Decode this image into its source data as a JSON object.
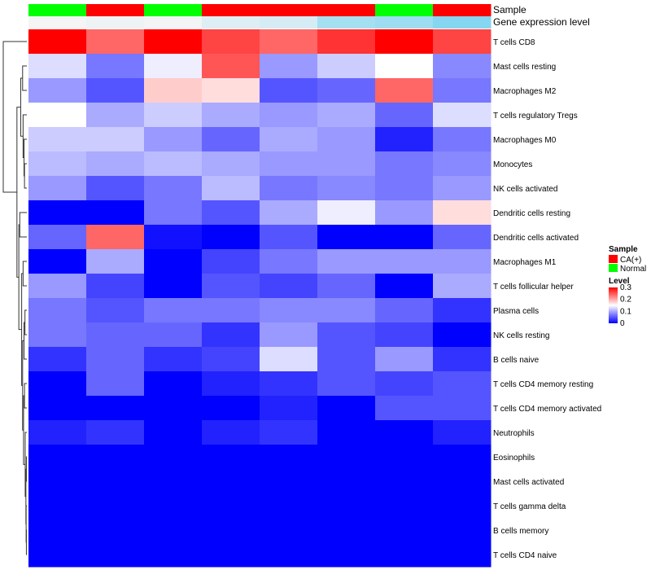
{
  "chart_data": {
    "type": "heatmap",
    "annotation_titles": {
      "sample": "Sample",
      "gene": "Gene expression level"
    },
    "legend": {
      "sample_title": "Sample",
      "sample_entries": [
        {
          "label": "CA(+)",
          "color": "#ff0000"
        },
        {
          "label": "Normal",
          "color": "#00ff00"
        }
      ],
      "level_title": "Level",
      "level_ticks": [
        "0.3",
        "0.2",
        "0.1",
        "0"
      ],
      "level_tick_values": [
        0.3,
        0.2,
        0.1,
        0
      ]
    },
    "color_scale": {
      "low": "#0000ff",
      "mid": "#ffffff",
      "high": "#ff0000",
      "min": 0,
      "mid_value": 0.15,
      "max": 0.3
    },
    "columns": [
      {
        "sample": "Normal",
        "gene": 0.0
      },
      {
        "sample": "CA(+)",
        "gene": 0.05
      },
      {
        "sample": "Normal",
        "gene": 0.02
      },
      {
        "sample": "CA(+)",
        "gene": 0.15
      },
      {
        "sample": "CA(+)",
        "gene": 0.2
      },
      {
        "sample": "CA(+)",
        "gene": 0.5
      },
      {
        "sample": "Normal",
        "gene": 0.55
      },
      {
        "sample": "CA(+)",
        "gene": 0.7
      }
    ],
    "gene_colors": {
      "low": "#f5f5f5",
      "high": "#55c8ee"
    },
    "rows": [
      "T cells CD8",
      "Mast cells resting",
      "Macrophages M2",
      "T cells regulatory  Tregs",
      "Macrophages M0",
      "Monocytes",
      "NK cells activated",
      "Dendritic cells resting",
      "Dendritic cells activated",
      "Macrophages M1",
      "T cells follicular helper",
      "Plasma cells",
      "NK cells resting",
      "B cells naive",
      "T cells CD4 memory resting",
      "T cells CD4 memory activated",
      "Neutrophils",
      "Eosinophils",
      "Mast cells activated",
      "T cells gamma delta",
      "B cells memory",
      "T cells CD4 naive"
    ],
    "values": [
      [
        0.3,
        0.24,
        0.3,
        0.26,
        0.24,
        0.27,
        0.3,
        0.26
      ],
      [
        0.13,
        0.07,
        0.14,
        0.25,
        0.09,
        0.12,
        0.15,
        0.08
      ],
      [
        0.09,
        0.05,
        0.18,
        0.17,
        0.05,
        0.06,
        0.24,
        0.07
      ],
      [
        0.15,
        0.1,
        0.12,
        0.1,
        0.09,
        0.1,
        0.06,
        0.13
      ],
      [
        0.12,
        0.12,
        0.09,
        0.06,
        0.1,
        0.09,
        0.02,
        0.07
      ],
      [
        0.11,
        0.1,
        0.11,
        0.1,
        0.09,
        0.09,
        0.07,
        0.08
      ],
      [
        0.09,
        0.05,
        0.07,
        0.11,
        0.07,
        0.08,
        0.07,
        0.09
      ],
      [
        0.0,
        0.0,
        0.07,
        0.05,
        0.1,
        0.14,
        0.09,
        0.17
      ],
      [
        0.06,
        0.24,
        0.01,
        0.0,
        0.05,
        0.0,
        0.0,
        0.06
      ],
      [
        0.0,
        0.1,
        0.0,
        0.04,
        0.07,
        0.09,
        0.09,
        0.09
      ],
      [
        0.09,
        0.04,
        0.0,
        0.05,
        0.04,
        0.06,
        0.0,
        0.1
      ],
      [
        0.07,
        0.05,
        0.07,
        0.07,
        0.08,
        0.08,
        0.06,
        0.03
      ],
      [
        0.07,
        0.06,
        0.06,
        0.03,
        0.09,
        0.05,
        0.04,
        0.0
      ],
      [
        0.03,
        0.06,
        0.03,
        0.04,
        0.13,
        0.05,
        0.09,
        0.03
      ],
      [
        0.0,
        0.06,
        0.0,
        0.02,
        0.03,
        0.05,
        0.04,
        0.05
      ],
      [
        0.0,
        0.0,
        0.0,
        0.0,
        0.02,
        0.0,
        0.05,
        0.05
      ],
      [
        0.02,
        0.03,
        0.0,
        0.02,
        0.03,
        0.0,
        0.0,
        0.02
      ],
      [
        0.0,
        0.0,
        0.0,
        0.0,
        0.0,
        0.0,
        0.0,
        0.0
      ],
      [
        0.0,
        0.0,
        0.0,
        0.0,
        0.0,
        0.0,
        0.0,
        0.0
      ],
      [
        0.0,
        0.0,
        0.0,
        0.0,
        0.0,
        0.0,
        0.0,
        0.0
      ],
      [
        0.0,
        0.0,
        0.0,
        0.0,
        0.0,
        0.0,
        0.0,
        0.0
      ],
      [
        0.0,
        0.0,
        0.0,
        0.0,
        0.0,
        0.0,
        0.0,
        0.0
      ]
    ],
    "row_dendrogram": {
      "nodes": [
        {
          "id": "n_ds_da",
          "left": 7,
          "right": 8
        },
        {
          "id": "n_mo_nka",
          "left": 5,
          "right": 6
        },
        {
          "id": "n_m1_tfh",
          "left": 9,
          "right": 10
        },
        {
          "id": "n_pc_nkr",
          "left": 11,
          "right": 12
        },
        {
          "id": "n_pc_nkr_bn",
          "left": "n_pc_nkr",
          "right": 13
        },
        {
          "id": "n_cd4r_cd4a",
          "left": 14,
          "right": 15
        },
        {
          "id": "n_e_ma",
          "left": 17,
          "right": 18
        },
        {
          "id": "n_bm_cd4n",
          "left": 20,
          "right": 21
        },
        {
          "id": "n_gd_bm",
          "left": 19,
          "right": "n_bm_cd4n"
        },
        {
          "id": "n_zero_a",
          "left": "n_e_ma",
          "right": "n_gd_bm"
        },
        {
          "id": "n_zero",
          "left": 16,
          "right": "n_zero_a"
        },
        {
          "id": "n_low_a",
          "left": "n_cd4r_cd4a",
          "right": "n_zero"
        },
        {
          "id": "n_low_b",
          "left": "n_pc_nkr_bn",
          "right": "n_low_a"
        },
        {
          "id": "n_low_c",
          "left": "n_m1_tfh",
          "right": "n_low_b"
        },
        {
          "id": "n_m0_mo",
          "left": 4,
          "right": "n_mo_nka"
        },
        {
          "id": "n_tr_m0",
          "left": 3,
          "right": "n_m0_mo"
        },
        {
          "id": "n_mr_m2",
          "left": 1,
          "right": 2
        },
        {
          "id": "n_mid",
          "left": "n_mr_m2",
          "right": "n_tr_m0"
        },
        {
          "id": "n_dc",
          "left": "n_ds_da",
          "right": "n_low_c"
        },
        {
          "id": "n_body",
          "left": "n_mid",
          "right": "n_dc"
        },
        {
          "id": "n_root",
          "left": 0,
          "right": "n_body"
        }
      ],
      "heights": {
        "n_ds_da": 0.3,
        "n_mo_nka": 0.1,
        "n_m1_tfh": 0.16,
        "n_pc_nkr": 0.08,
        "n_pc_nkr_bn": 0.12,
        "n_cd4r_cd4a": 0.1,
        "n_e_ma": 0.02,
        "n_bm_cd4n": 0.02,
        "n_gd_bm": 0.03,
        "n_zero_a": 0.04,
        "n_zero": 0.07,
        "n_low_a": 0.14,
        "n_low_b": 0.18,
        "n_low_c": 0.22,
        "n_m0_mo": 0.12,
        "n_tr_m0": 0.16,
        "n_mr_m2": 0.18,
        "n_mid": 0.26,
        "n_dc": 0.34,
        "n_body": 0.42,
        "n_root": 1.0
      }
    }
  }
}
